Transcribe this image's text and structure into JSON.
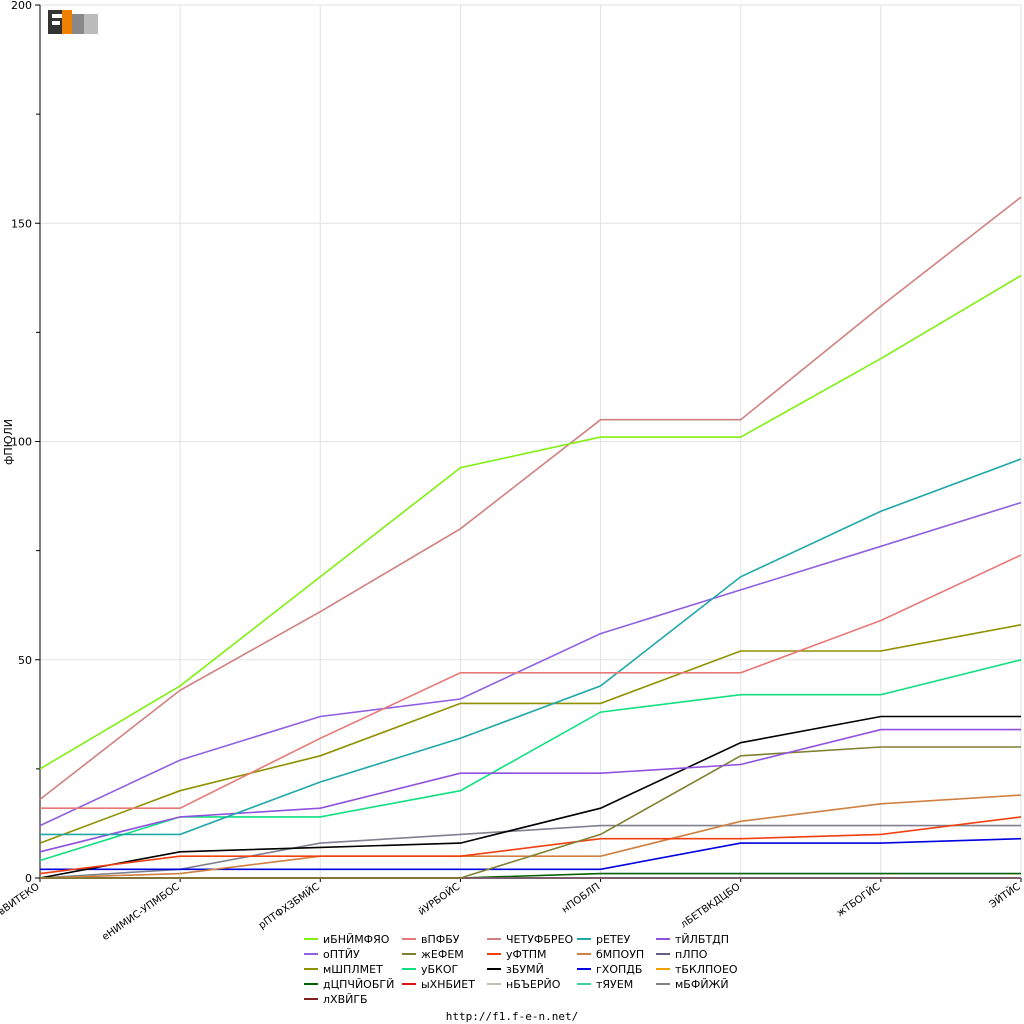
{
  "logo_text": "F1EN",
  "footer_url": "http://f1.f-e-n.net/",
  "chart_data": {
    "type": "line",
    "ylabel": "фПЮЛИ",
    "xlabel": "",
    "ylim": [
      0,
      200
    ],
    "y_ticks": [
      0,
      50,
      100,
      150,
      200
    ],
    "grid": true,
    "legend_position": "bottom",
    "categories": [
      "вВИТЕКО",
      "еНИМИС-УПМБОС",
      "рПТФХЗБМЙС",
      "йУРБОЙС",
      "нПОБЛП",
      "лБЕТВКДЦБО",
      "жТБОГЙС",
      "ЭЙТЙС"
    ],
    "series": [
      {
        "name": "иБНЙМФЯО",
        "color": "#80f010",
        "values": [
          25,
          44,
          69,
          94,
          101,
          101,
          119,
          138
        ]
      },
      {
        "name": "вПФБУ",
        "color": "#e87878",
        "values": [
          16,
          16,
          32,
          47,
          47,
          47,
          59,
          74
        ]
      },
      {
        "name": "ЧЕТУФБРЕО",
        "color": "#d08080",
        "values": [
          18,
          43,
          61,
          80,
          105,
          105,
          131,
          156
        ]
      },
      {
        "name": "рЕТЕУ",
        "color": "#20a8a8",
        "values": [
          10,
          10,
          22,
          32,
          44,
          69,
          84,
          96
        ]
      },
      {
        "name": "тЙЛБТДП",
        "color": "#9050e0",
        "values": [
          6,
          14,
          16,
          24,
          24,
          26,
          34,
          34
        ]
      },
      {
        "name": "оПТЙУ",
        "color": "#9060e0",
        "values": [
          12,
          27,
          37,
          41,
          56,
          66,
          76,
          86
        ]
      },
      {
        "name": "жЕФЕМ",
        "color": "#808030",
        "values": [
          0,
          0,
          0,
          0,
          10,
          28,
          30,
          30
        ]
      },
      {
        "name": "уБКОГ",
        "color": "#10e080",
        "values": [
          4,
          14,
          14,
          20,
          38,
          42,
          42,
          50
        ]
      },
      {
        "name": "уФТПМ",
        "color": "#f04010",
        "values": [
          1,
          5,
          5,
          5,
          9,
          9,
          10,
          14
        ]
      },
      {
        "name": "бМПОУП",
        "color": "#d08040",
        "values": [
          0,
          1,
          5,
          5,
          5,
          13,
          17,
          19
        ]
      },
      {
        "name": "пЛПО",
        "color": "#606080",
        "values": [
          0,
          0,
          0,
          0,
          0,
          0,
          0,
          0
        ]
      },
      {
        "name": "мШПЛМЕТ",
        "color": "#909000",
        "values": [
          8,
          20,
          28,
          40,
          40,
          52,
          52,
          58
        ]
      },
      {
        "name": "ыХНБИЕТ",
        "color": "#e01010",
        "values": [
          0,
          0,
          0,
          0,
          0,
          0,
          0,
          0
        ]
      },
      {
        "name": "зБУМЙ",
        "color": "#000000",
        "values": [
          0,
          6,
          7,
          8,
          16,
          31,
          37,
          37
        ]
      },
      {
        "name": "гХОПДБ",
        "color": "#0000e0",
        "values": [
          2,
          2,
          2,
          2,
          2,
          8,
          8,
          9
        ]
      },
      {
        "name": "тБКЛПОЕО",
        "color": "#f0a000",
        "values": [
          0,
          0,
          0,
          0,
          0,
          0,
          0,
          0
        ]
      },
      {
        "name": "дЦПЧЙОБГЙ",
        "color": "#006000",
        "values": [
          0,
          0,
          0,
          0,
          1,
          1,
          1,
          1
        ]
      },
      {
        "name": "нБЪЕРЙО",
        "color": "#c0c0b0",
        "values": [
          0,
          0,
          0,
          0,
          0,
          0,
          0,
          0
        ]
      },
      {
        "name": "тЯУЕМ",
        "color": "#40d0a0",
        "values": [
          0,
          0,
          0,
          0,
          0,
          0,
          0,
          0
        ]
      },
      {
        "name": "мБФЙЖЙ",
        "color": "#808090",
        "values": [
          0,
          2,
          8,
          10,
          12,
          12,
          12,
          12
        ]
      },
      {
        "name": "лХВЙГБ",
        "color": "#802020",
        "values": [
          0,
          0,
          0,
          0,
          0,
          0,
          0,
          0
        ]
      }
    ],
    "legend_order": [
      "иБНЙМФЯО",
      "вПФБУ",
      "ЧЕТУФБРЕО",
      "рЕТЕУ",
      "тЙЛБТДП",
      "оПТЙУ",
      "жЕФЕМ",
      "уФТПМ",
      "бМПОУП",
      "пЛПО",
      "мШПЛМЕТ",
      "уБКОГ",
      "зБУМЙ",
      "гХОПДБ",
      "тБКЛПОЕО",
      "дЦПЧЙОБГЙ",
      "ыХНБИЕТ",
      "нБЪЕРЙО",
      "тЯУЕМ",
      "мБФЙЖЙ",
      "лХВЙГБ"
    ]
  }
}
